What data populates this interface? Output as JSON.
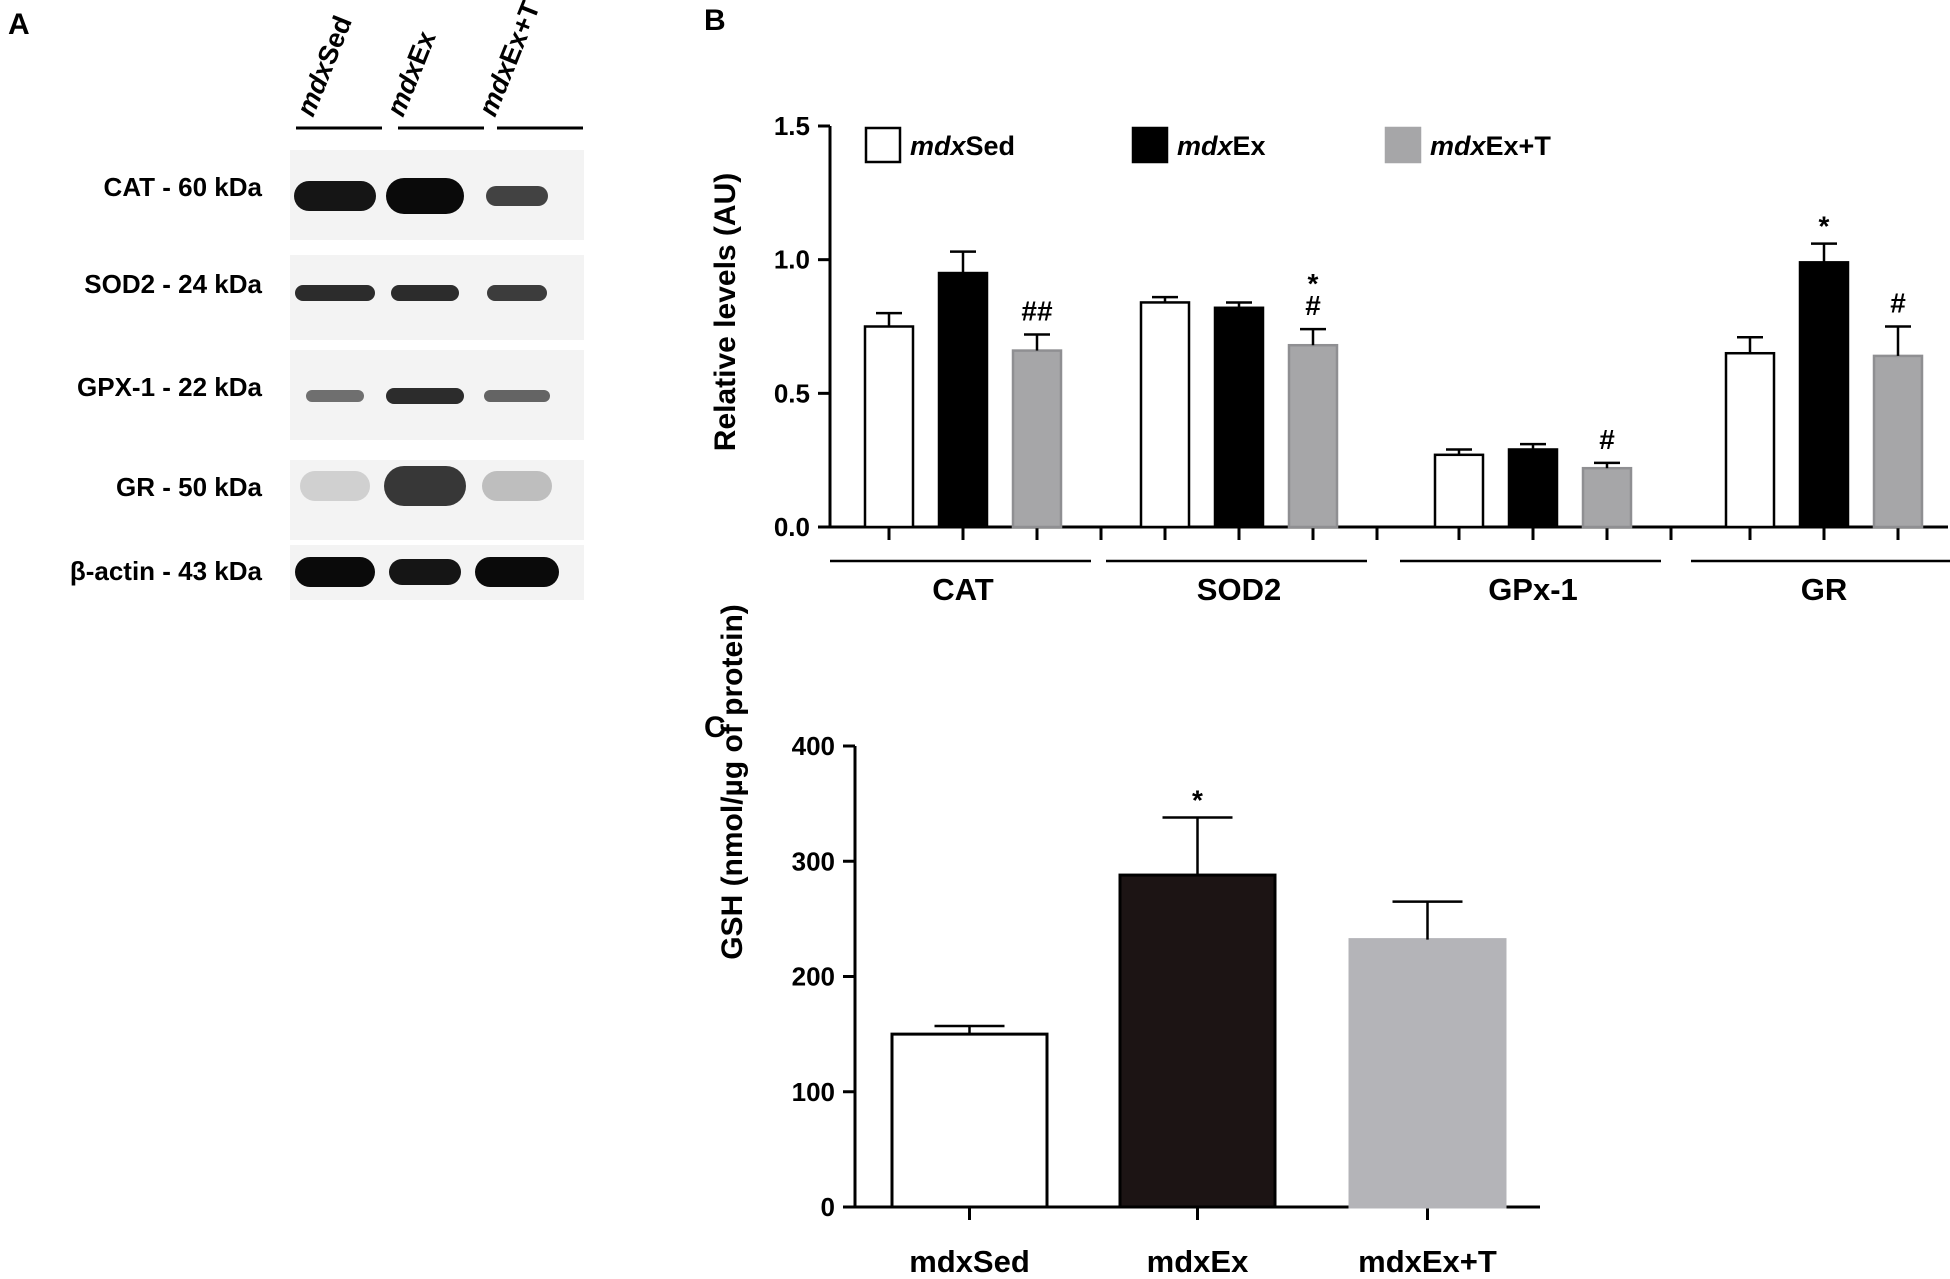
{
  "panel_labels": [
    "A",
    "B",
    "C"
  ],
  "western_blot": {
    "lanes": [
      {
        "prefix": "mdx",
        "suffix": "Sed"
      },
      {
        "prefix": "mdx",
        "suffix": "Ex"
      },
      {
        "prefix": "mdx",
        "suffix": "Ex+T"
      }
    ],
    "rows": [
      "CAT - 60 kDa",
      "SOD2 - 24 kDa",
      "GPX-1 - 22 kDa",
      "GR - 50 kDa",
      "β-actin - 43 kDa"
    ],
    "band_intensity": [
      [
        0.95,
        1.0,
        0.75
      ],
      [
        0.85,
        0.85,
        0.78
      ],
      [
        0.55,
        0.85,
        0.6
      ],
      [
        0.12,
        0.8,
        0.2
      ],
      [
        1.0,
        0.95,
        1.0
      ]
    ]
  },
  "colors": {
    "mdxSed": "#ffffff",
    "mdxEx": "#000000",
    "mdxEx+T": "#a6a6a8",
    "mdxEx_C": "#1c1414",
    "mdxEx+T_C": "#b4b4b8"
  },
  "chart_data": [
    {
      "type": "bar",
      "panel": "B",
      "title": "",
      "ylabel": "Relative levels (AU)",
      "xlabel": "",
      "ylim": [
        0,
        1.5
      ],
      "yticks": [
        "0.0",
        "0.5",
        "1.0",
        "1.5"
      ],
      "categories": [
        "CAT",
        "SOD2",
        "GPx-1",
        "GR"
      ],
      "legend_position": "top",
      "series": [
        {
          "name": "mdxSed",
          "name_prefix": "mdx",
          "name_suffix": "Sed",
          "values": [
            0.75,
            0.84,
            0.27,
            0.65
          ],
          "errors": [
            0.05,
            0.02,
            0.02,
            0.06
          ],
          "annotations": [
            "",
            "",
            "",
            ""
          ]
        },
        {
          "name": "mdxEx",
          "name_prefix": "mdx",
          "name_suffix": "Ex",
          "values": [
            0.95,
            0.82,
            0.29,
            0.99
          ],
          "errors": [
            0.08,
            0.02,
            0.02,
            0.07
          ],
          "annotations": [
            "",
            "",
            "",
            "*"
          ]
        },
        {
          "name": "mdxEx+T",
          "name_prefix": "mdx",
          "name_suffix": "Ex+T",
          "values": [
            0.66,
            0.68,
            0.22,
            0.64
          ],
          "errors": [
            0.06,
            0.06,
            0.02,
            0.11
          ],
          "annotations": [
            "##",
            "*\n#",
            "#",
            "#"
          ]
        }
      ]
    },
    {
      "type": "bar",
      "panel": "C",
      "title": "",
      "ylabel": "GSH (nmol/µg of protein)",
      "xlabel": "",
      "ylim": [
        0,
        400
      ],
      "yticks": [
        "0",
        "100",
        "200",
        "300",
        "400"
      ],
      "categories": [
        "mdxSed",
        "mdxEx",
        "mdxEx+T"
      ],
      "values": [
        150,
        288,
        232
      ],
      "errors": [
        7,
        50,
        33
      ],
      "annotations": [
        "",
        "*",
        ""
      ]
    }
  ]
}
